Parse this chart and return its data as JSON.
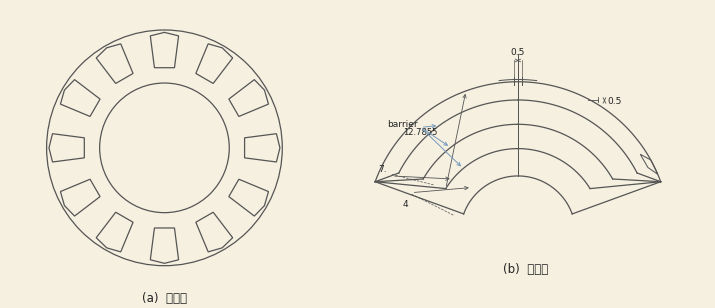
{
  "bg_color": "#f5f0e0",
  "line_color": "#555555",
  "blue_color": "#7799bb",
  "title_a": "(a)  고정자",
  "title_b": "(b)  회전자",
  "ann_05_top": "0.5",
  "ann_05_right": "0.5",
  "ann_127855": "12.7855",
  "ann_barrier": "barrier",
  "ann_7": "7.",
  "ann_4": "4"
}
